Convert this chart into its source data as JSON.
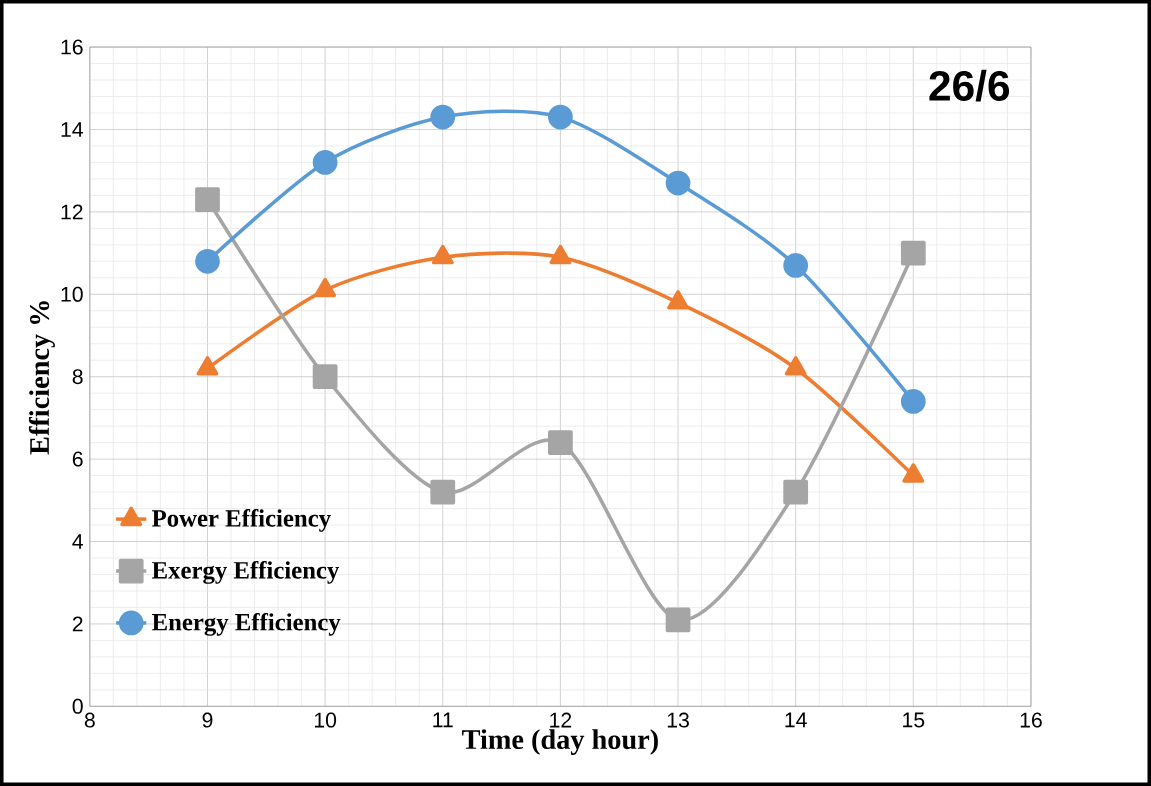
{
  "chart_data": {
    "type": "line",
    "xlabel": "Time (day hour)",
    "ylabel": "Efficiency %",
    "annotations": [
      "26/6"
    ],
    "x": [
      9,
      10,
      11,
      12,
      13,
      14,
      15
    ],
    "series": [
      {
        "name": "Power Efficiency",
        "color": "#ed7d31",
        "marker": "triangle",
        "values": [
          8.2,
          10.1,
          10.9,
          10.9,
          9.8,
          8.2,
          5.6
        ]
      },
      {
        "name": "Exergy Efficiency",
        "color": "#a5a5a5",
        "marker": "square",
        "values": [
          12.3,
          8.0,
          5.2,
          6.4,
          2.1,
          5.2,
          11.0
        ]
      },
      {
        "name": "Energy Efficiency",
        "color": "#5b9bd5",
        "marker": "circle",
        "values": [
          10.8,
          13.2,
          14.3,
          14.3,
          12.7,
          10.7,
          7.4
        ]
      }
    ],
    "xlim": [
      8,
      16
    ],
    "xticks": [
      8,
      9,
      10,
      11,
      12,
      13,
      14,
      15,
      16
    ],
    "ylim": [
      0,
      16
    ],
    "yticks": [
      0,
      2,
      4,
      6,
      8,
      10,
      12,
      14,
      16
    ],
    "grid": true,
    "legend": "bottom left",
    "line_style": "solid"
  }
}
